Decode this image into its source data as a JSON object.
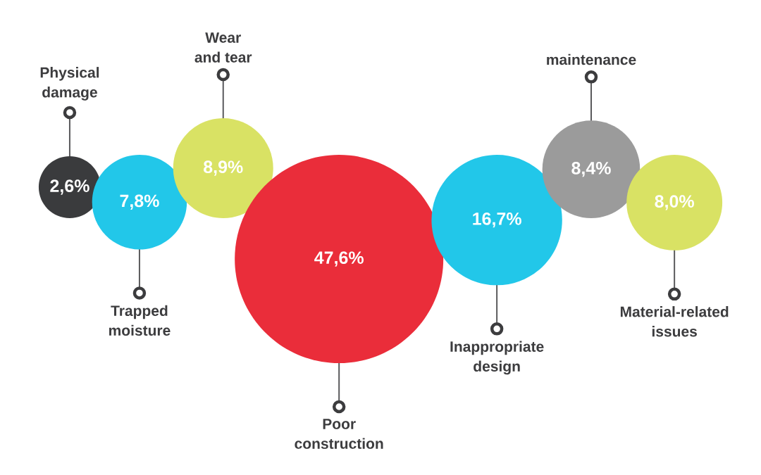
{
  "chart_data": {
    "type": "other",
    "categories": [
      "Physical damage",
      "Trapped moisture",
      "Wear and tear",
      "Poor construction",
      "Inappropriate design",
      "maintenance",
      "Material-related issues"
    ],
    "values": [
      2.6,
      7.8,
      8.9,
      47.6,
      16.7,
      8.4,
      8.0
    ],
    "value_labels": [
      "2,6%",
      "7,8%",
      "8,9%",
      "47,6%",
      "16,7%",
      "8,4%",
      "8,0%"
    ],
    "colors": [
      "#3a3b3d",
      "#22c7e9",
      "#d9e264",
      "#ea2d3a",
      "#22c7e9",
      "#9b9b9b",
      "#d9e264"
    ]
  }
}
